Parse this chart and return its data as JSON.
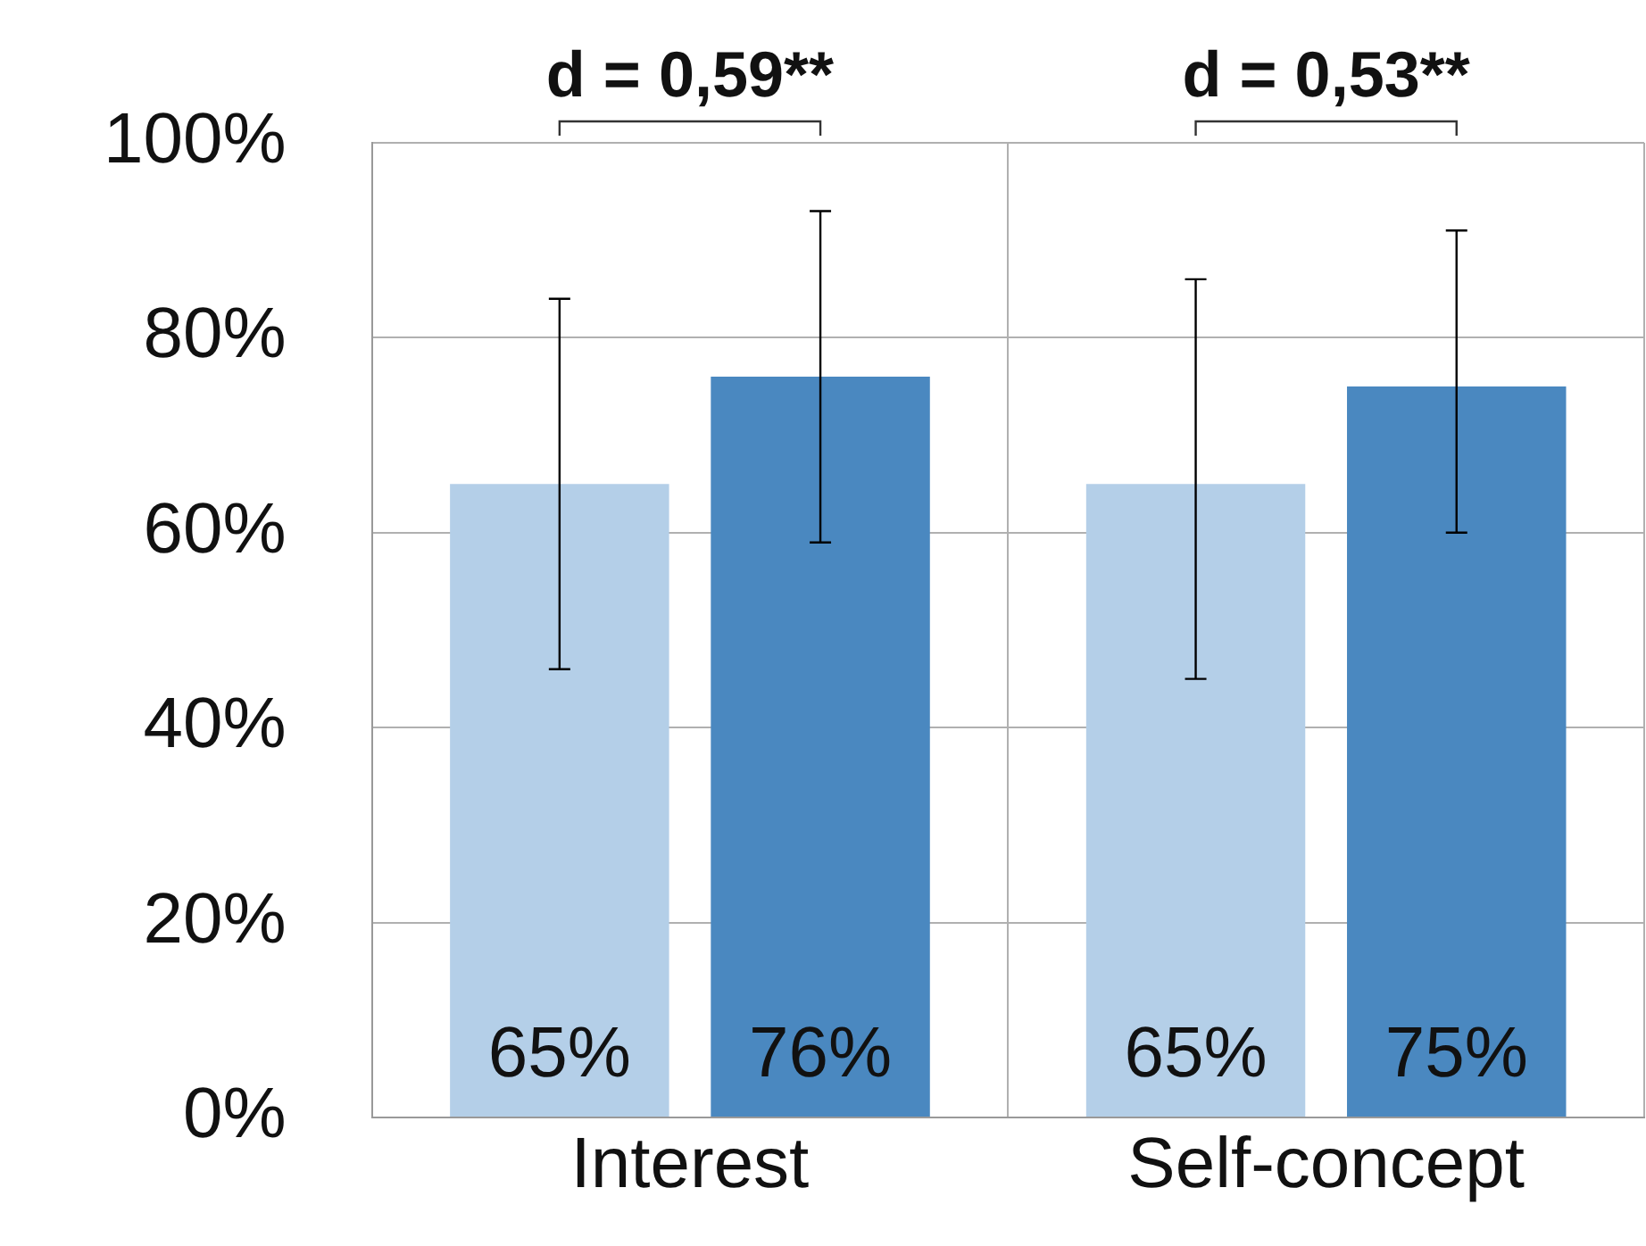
{
  "chart_data": {
    "type": "bar",
    "categories": [
      "Interest",
      "Self-concept"
    ],
    "series": [
      {
        "color": "#b4cfe8",
        "values": [
          65,
          65
        ],
        "value_labels": [
          "65%",
          "65%"
        ],
        "errors": [
          [
            46,
            84
          ],
          [
            45,
            86
          ]
        ]
      },
      {
        "color": "#4a88c0",
        "values": [
          76,
          75
        ],
        "value_labels": [
          "76%",
          "75%"
        ],
        "errors": [
          [
            59,
            93
          ],
          [
            60,
            91
          ]
        ]
      }
    ],
    "ylim": [
      0,
      100
    ],
    "yticks": [
      {
        "value": 0,
        "label": "0%"
      },
      {
        "value": 20,
        "label": "20%"
      },
      {
        "value": 40,
        "label": "40%"
      },
      {
        "value": 60,
        "label": "60%"
      },
      {
        "value": 80,
        "label": "80%"
      },
      {
        "value": 100,
        "label": "100%"
      }
    ],
    "grid": true,
    "legend": false,
    "annotations": [
      "d = 0,59**",
      "d = 0,53**"
    ]
  }
}
